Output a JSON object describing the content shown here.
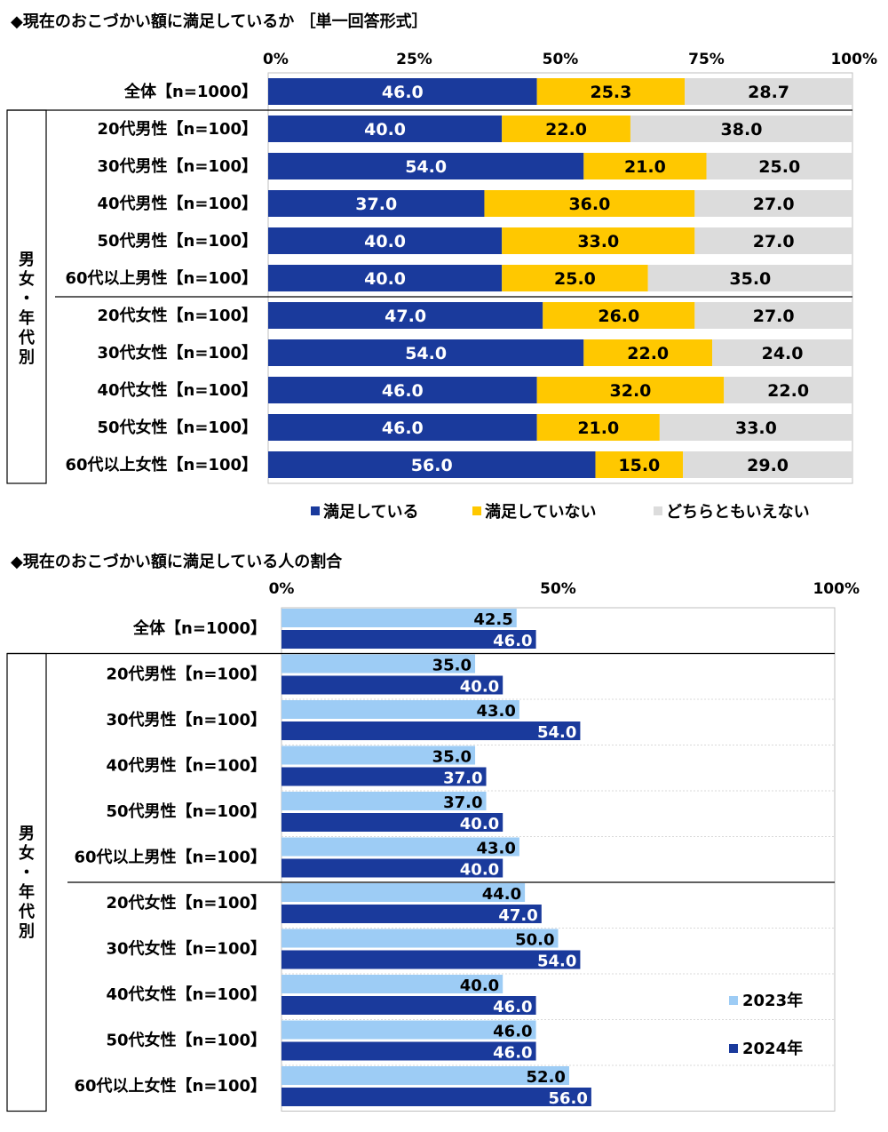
{
  "chart_data": [
    {
      "type": "bar",
      "orientation": "horizontal",
      "stacked": true,
      "title": "◆現在のおこづかい額に満足しているか ［単一回答形式］",
      "group_label": "男女・年代別",
      "total_category": "全体【n=1000】",
      "categories": [
        "20代男性【n=100】",
        "30代男性【n=100】",
        "40代男性【n=100】",
        "50代男性【n=100】",
        "60代以上男性【n=100】",
        "20代女性【n=100】",
        "30代女性【n=100】",
        "40代女性【n=100】",
        "50代女性【n=100】",
        "60代以上女性【n=100】"
      ],
      "xlim": [
        0,
        100
      ],
      "xticks": [
        "0%",
        "25%",
        "50%",
        "75%",
        "100%"
      ],
      "series": [
        {
          "name": "満足している",
          "color": "#1a3a9c",
          "label_color": "#ffffff",
          "total": 46.0,
          "values": [
            40.0,
            54.0,
            37.0,
            40.0,
            40.0,
            47.0,
            54.0,
            46.0,
            46.0,
            56.0
          ]
        },
        {
          "name": "満足していない",
          "color": "#ffc800",
          "label_color": "#000000",
          "total": 25.3,
          "values": [
            22.0,
            21.0,
            36.0,
            33.0,
            25.0,
            26.0,
            22.0,
            32.0,
            21.0,
            15.0
          ]
        },
        {
          "name": "どちらともいえない",
          "color": "#dcdcdc",
          "label_color": "#000000",
          "total": 28.7,
          "values": [
            38.0,
            25.0,
            27.0,
            27.0,
            35.0,
            27.0,
            24.0,
            22.0,
            33.0,
            29.0
          ]
        }
      ],
      "legend_position": "bottom"
    },
    {
      "type": "bar",
      "orientation": "horizontal",
      "stacked": false,
      "title": "◆現在のおこづかい額に満足している人の割合",
      "group_label": "男女・年代別",
      "total_category": "全体【n=1000】",
      "categories": [
        "20代男性【n=100】",
        "30代男性【n=100】",
        "40代男性【n=100】",
        "50代男性【n=100】",
        "60代以上男性【n=100】",
        "20代女性【n=100】",
        "30代女性【n=100】",
        "40代女性【n=100】",
        "50代女性【n=100】",
        "60代以上女性【n=100】"
      ],
      "xlim": [
        0,
        100
      ],
      "xticks": [
        "0%",
        "50%",
        "100%"
      ],
      "series": [
        {
          "name": "2023年",
          "color": "#9dccf5",
          "label_color": "#000000",
          "total": 42.5,
          "values": [
            35.0,
            43.0,
            35.0,
            37.0,
            43.0,
            44.0,
            50.0,
            40.0,
            46.0,
            52.0
          ]
        },
        {
          "name": "2024年",
          "color": "#1a3a9c",
          "label_color": "#ffffff",
          "total": 46.0,
          "values": [
            40.0,
            54.0,
            37.0,
            40.0,
            40.0,
            47.0,
            54.0,
            46.0,
            46.0,
            56.0
          ]
        }
      ],
      "legend_position": "bottom-right"
    }
  ]
}
